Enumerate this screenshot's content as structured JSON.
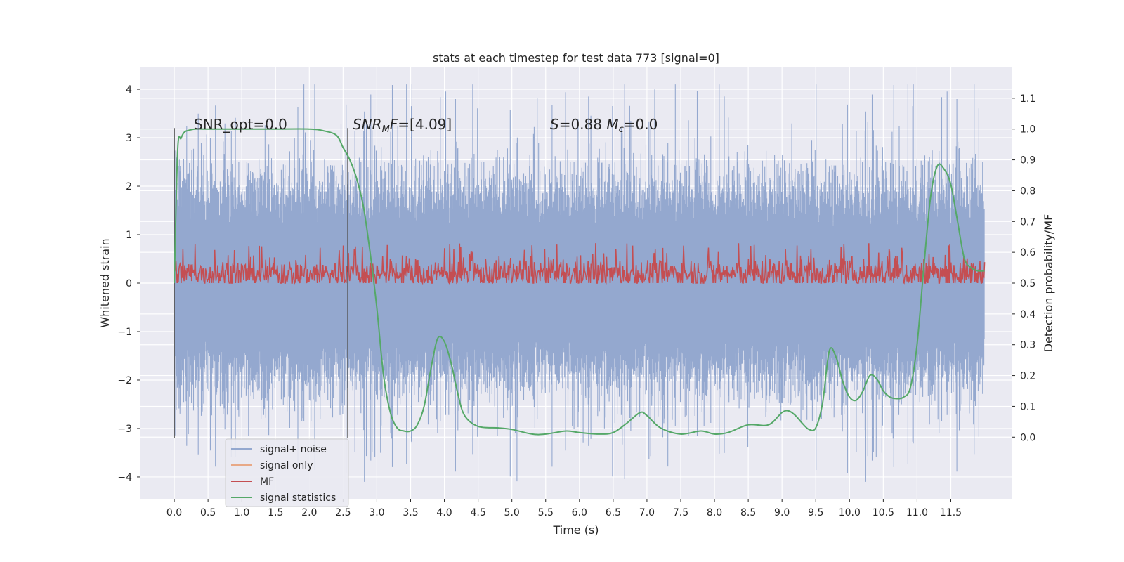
{
  "chart_data": {
    "type": "line",
    "title": "stats at each timestep for test data 773 [signal=0]",
    "xlabel": "Time (s)",
    "ylabel": "Whitened strain",
    "ylabel_right": "Detection probability/MF",
    "xlim": [
      -0.5,
      12.4
    ],
    "ylim": [
      -4.45,
      4.45
    ],
    "ylim_right": [
      -0.2,
      1.2
    ],
    "x_ticks": [
      0.0,
      0.5,
      1.0,
      1.5,
      2.0,
      2.5,
      3.0,
      3.5,
      4.0,
      4.5,
      5.0,
      5.5,
      6.0,
      6.5,
      7.0,
      7.5,
      8.0,
      8.5,
      9.0,
      9.5,
      10.0,
      10.5,
      11.0,
      11.5
    ],
    "x_tick_labels": [
      "0.0",
      "0.5",
      "1.0",
      "1.5",
      "2.0",
      "2.5",
      "3.0",
      "3.5",
      "4.0",
      "4.5",
      "5.0",
      "5.5",
      "6.0",
      "6.5",
      "7.0",
      "7.5",
      "8.0",
      "8.5",
      "9.0",
      "9.5",
      "10.0",
      "10.5",
      "11.0",
      "11.5"
    ],
    "y_ticks": [
      -4,
      -3,
      -2,
      -1,
      0,
      1,
      2,
      3,
      4
    ],
    "y_tick_labels": [
      "−4",
      "−3",
      "−2",
      "−1",
      "0",
      "1",
      "2",
      "3",
      "4"
    ],
    "y_ticks_right": [
      0.0,
      0.1,
      0.2,
      0.3,
      0.4,
      0.5,
      0.6,
      0.7,
      0.8,
      0.9,
      1.0,
      1.1
    ],
    "y_tick_labels_right": [
      "0.0",
      "0.1",
      "0.2",
      "0.3",
      "0.4",
      "0.5",
      "0.6",
      "0.7",
      "0.8",
      "0.9",
      "1.0",
      "1.1"
    ],
    "grid": true,
    "legend_position": "lower-left",
    "annotations": [
      {
        "x": 0.2,
        "y": 3.2,
        "text": "SNR_opt=0.0"
      },
      {
        "x": 2.6,
        "y": 3.2,
        "text": "SNR_MF=[4.09]"
      },
      {
        "x": 5.6,
        "y": 3.2,
        "text": "S=0.88   M_c=0.0"
      }
    ],
    "vertical_lines": [
      {
        "x": 0.0,
        "y_range": [
          -3.2,
          3.2
        ]
      },
      {
        "x": 2.57,
        "y_range": [
          -3.2,
          3.2
        ]
      }
    ],
    "series": [
      {
        "name": "signal+ noise",
        "color": "#94a8cf",
        "axis": "left",
        "kind": "noise",
        "x_range": [
          0.0,
          12.0
        ],
        "amplitude_typical": 2.0,
        "amplitude_max": 4.1,
        "min": -4.1,
        "max": 4.1
      },
      {
        "name": "signal only",
        "color": "#dd8452",
        "axis": "left",
        "x": [
          0.0,
          12.0
        ],
        "y": [
          0.0,
          0.0
        ]
      },
      {
        "name": "MF",
        "color": "#c44e52",
        "axis": "right",
        "kind": "noise",
        "x_range": [
          0.0,
          12.0
        ],
        "baseline": 0.53,
        "min": 0.5,
        "max": 0.63
      },
      {
        "name": "signal statistics",
        "color": "#55a868",
        "axis": "right",
        "x": [
          0.0,
          0.05,
          0.1,
          0.15,
          0.2,
          0.3,
          0.5,
          1.0,
          1.5,
          2.0,
          2.2,
          2.4,
          2.5,
          2.6,
          2.7,
          2.8,
          2.9,
          3.0,
          3.1,
          3.2,
          3.3,
          3.4,
          3.5,
          3.6,
          3.7,
          3.8,
          3.9,
          4.0,
          4.1,
          4.2,
          4.3,
          4.5,
          4.8,
          5.0,
          5.3,
          5.5,
          5.8,
          6.0,
          6.3,
          6.5,
          6.7,
          6.9,
          7.0,
          7.2,
          7.5,
          7.8,
          8.0,
          8.2,
          8.5,
          8.8,
          9.0,
          9.1,
          9.2,
          9.3,
          9.4,
          9.5,
          9.6,
          9.7,
          9.8,
          9.9,
          10.0,
          10.1,
          10.2,
          10.3,
          10.4,
          10.5,
          10.6,
          10.7,
          10.8,
          10.9,
          11.0,
          11.1,
          11.2,
          11.3,
          11.4,
          11.5,
          11.6,
          11.7,
          11.8,
          11.9,
          12.0
        ],
        "y": [
          0.5,
          0.93,
          0.97,
          0.99,
          0.995,
          1.0,
          1.0,
          1.0,
          1.0,
          1.0,
          0.995,
          0.98,
          0.94,
          0.9,
          0.84,
          0.75,
          0.6,
          0.42,
          0.2,
          0.08,
          0.03,
          0.02,
          0.02,
          0.04,
          0.1,
          0.22,
          0.32,
          0.31,
          0.24,
          0.14,
          0.07,
          0.035,
          0.03,
          0.025,
          0.01,
          0.01,
          0.02,
          0.015,
          0.01,
          0.015,
          0.045,
          0.08,
          0.07,
          0.03,
          0.01,
          0.02,
          0.01,
          0.015,
          0.04,
          0.04,
          0.08,
          0.085,
          0.07,
          0.045,
          0.025,
          0.03,
          0.11,
          0.28,
          0.26,
          0.18,
          0.13,
          0.12,
          0.15,
          0.2,
          0.19,
          0.15,
          0.13,
          0.125,
          0.13,
          0.16,
          0.3,
          0.55,
          0.78,
          0.88,
          0.87,
          0.82,
          0.7,
          0.58,
          0.55,
          0.54,
          0.54
        ]
      }
    ]
  },
  "legend": {
    "items": [
      {
        "label": "signal+ noise",
        "color": "#94a8cf"
      },
      {
        "label": "signal only",
        "color": "#e8a987"
      },
      {
        "label": "MF",
        "color": "#c44e52"
      },
      {
        "label": "signal statistics",
        "color": "#55a868"
      }
    ]
  }
}
